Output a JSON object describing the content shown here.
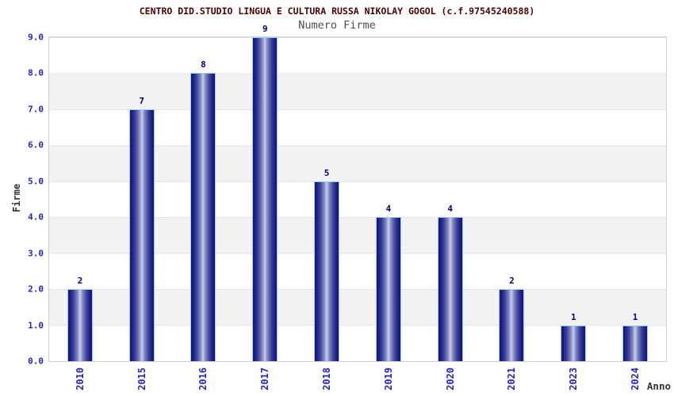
{
  "header": {
    "title": "CENTRO DID.STUDIO LINGUA E CULTURA RUSSA NIKOLAY GOGOL (c.f.97545240588)",
    "subtitle": "Numero Firme"
  },
  "chart_data": {
    "type": "bar",
    "title": "CENTRO DID.STUDIO LINGUA E CULTURA RUSSA NIKOLAY GOGOL (c.f.97545240588)",
    "subtitle": "Numero Firme",
    "categories": [
      "2010",
      "2015",
      "2016",
      "2017",
      "2018",
      "2019",
      "2020",
      "2021",
      "2023",
      "2024"
    ],
    "values": [
      2,
      7,
      8,
      9,
      5,
      4,
      4,
      2,
      1,
      1
    ],
    "xlabel": "Anno",
    "ylabel": "Firme",
    "ylim": [
      0,
      9
    ],
    "ytick_labels": [
      "0.0",
      "1.0",
      "2.0",
      "3.0",
      "4.0",
      "5.0",
      "6.0",
      "7.0",
      "8.0",
      "9.0"
    ],
    "grid": "horizontal-alternating-bands",
    "legend_position": "none",
    "colors": {
      "bar_dark": "#15157b",
      "bar_mid": "#7c84bd",
      "bar_light": "#c6cde9",
      "bar_border": "#92d2fa",
      "title": "#4d0000",
      "subtitle": "#4d4d4d",
      "tick_label": "#2424cc",
      "value_label": "#000080",
      "axis_label": "#333333",
      "band_gray": "#f2f2f2",
      "plot_border": "#d0d0d0"
    }
  }
}
